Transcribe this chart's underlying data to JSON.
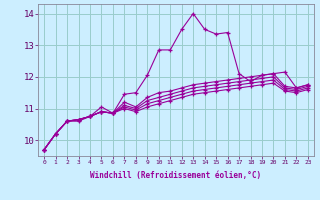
{
  "xlabel": "Windchill (Refroidissement éolien,°C)",
  "background_color": "#cceeff",
  "line_color": "#990099",
  "grid_color": "#99cccc",
  "x_values": [
    0,
    1,
    2,
    3,
    4,
    5,
    6,
    7,
    8,
    9,
    10,
    11,
    12,
    13,
    14,
    15,
    16,
    17,
    18,
    19,
    20,
    21,
    22,
    23
  ],
  "series": [
    [
      9.7,
      10.2,
      10.6,
      10.6,
      10.75,
      11.05,
      10.85,
      11.45,
      11.5,
      12.05,
      12.85,
      12.85,
      13.5,
      14.0,
      13.5,
      13.35,
      13.4,
      12.1,
      11.85,
      12.05,
      12.1,
      12.15,
      11.65,
      11.75
    ],
    [
      9.7,
      10.2,
      10.6,
      10.65,
      10.75,
      10.9,
      10.85,
      11.2,
      11.05,
      11.35,
      11.5,
      11.55,
      11.65,
      11.75,
      11.8,
      11.85,
      11.9,
      11.95,
      12.0,
      12.05,
      12.1,
      11.7,
      11.65,
      11.75
    ],
    [
      9.7,
      10.2,
      10.6,
      10.65,
      10.75,
      10.9,
      10.85,
      11.1,
      11.0,
      11.25,
      11.35,
      11.45,
      11.55,
      11.65,
      11.7,
      11.75,
      11.8,
      11.85,
      11.9,
      11.95,
      12.0,
      11.65,
      11.6,
      11.7
    ],
    [
      9.7,
      10.2,
      10.6,
      10.65,
      10.75,
      10.9,
      10.85,
      11.05,
      10.95,
      11.15,
      11.25,
      11.35,
      11.45,
      11.55,
      11.6,
      11.65,
      11.7,
      11.75,
      11.8,
      11.85,
      11.9,
      11.6,
      11.55,
      11.65
    ],
    [
      9.7,
      10.2,
      10.6,
      10.65,
      10.75,
      10.9,
      10.85,
      11.0,
      10.9,
      11.05,
      11.15,
      11.25,
      11.35,
      11.45,
      11.5,
      11.55,
      11.6,
      11.65,
      11.7,
      11.75,
      11.8,
      11.55,
      11.5,
      11.6
    ]
  ],
  "ylim": [
    9.5,
    14.3
  ],
  "yticks": [
    10,
    11,
    12,
    13,
    14
  ],
  "xticks": [
    0,
    1,
    2,
    3,
    4,
    5,
    6,
    7,
    8,
    9,
    10,
    11,
    12,
    13,
    14,
    15,
    16,
    17,
    18,
    19,
    20,
    21,
    22,
    23
  ]
}
